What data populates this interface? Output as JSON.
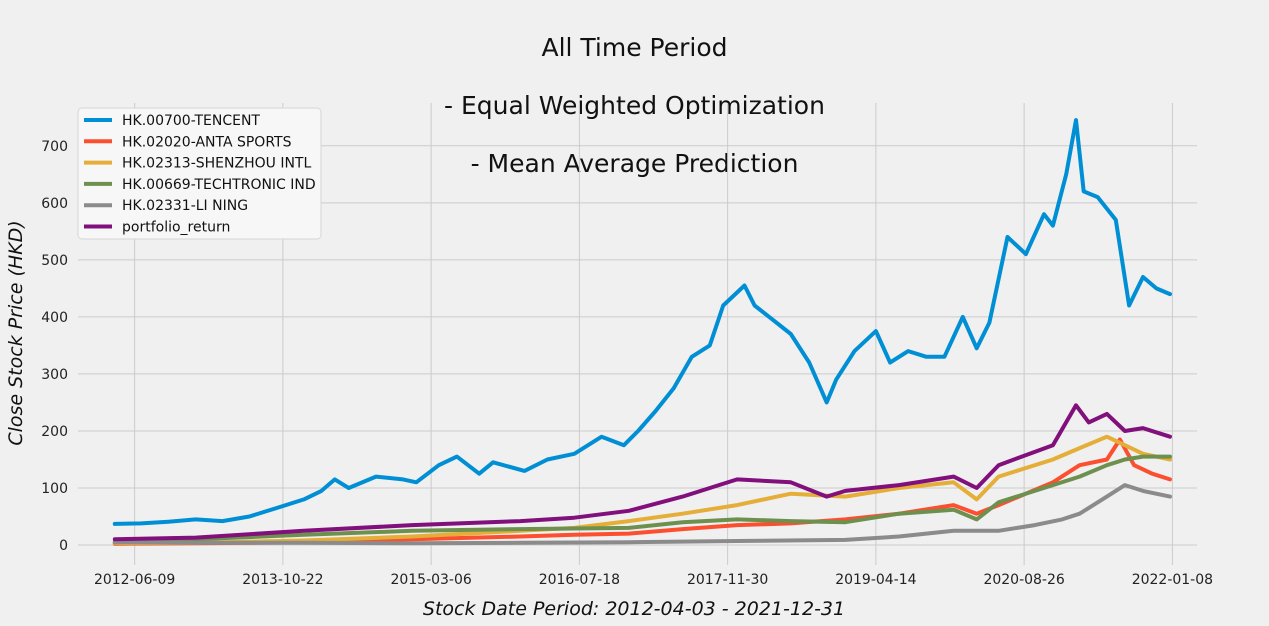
{
  "chart_data": {
    "type": "line",
    "title_lines": [
      "All Time Period",
      "- Equal Weighted Optimization",
      "- Mean Average Prediction"
    ],
    "xlabel": "Stock Date Period: 2012-04-03 - 2021-12-31",
    "ylabel": "Close Stock Price (HKD)",
    "xlim": [
      "2011-12-01",
      "2022-04-01"
    ],
    "ylim": [
      -35,
      775
    ],
    "x_ticks": [
      "2012-06-09",
      "2013-10-22",
      "2015-03-06",
      "2016-07-18",
      "2017-11-30",
      "2019-04-14",
      "2020-08-26",
      "2022-01-08"
    ],
    "y_ticks": [
      0,
      100,
      200,
      300,
      400,
      500,
      600,
      700
    ],
    "grid": true,
    "legend_position": "top-left",
    "series": [
      {
        "name": "HK.00700-TENCENT",
        "color": "#008fd5",
        "points": [
          [
            "2012-04-03",
            37
          ],
          [
            "2012-07-01",
            38
          ],
          [
            "2012-10-01",
            41
          ],
          [
            "2013-01-01",
            45
          ],
          [
            "2013-04-01",
            42
          ],
          [
            "2013-07-01",
            50
          ],
          [
            "2013-10-01",
            65
          ],
          [
            "2014-01-01",
            80
          ],
          [
            "2014-03-01",
            95
          ],
          [
            "2014-04-15",
            115
          ],
          [
            "2014-06-01",
            100
          ],
          [
            "2014-09-01",
            120
          ],
          [
            "2014-12-01",
            115
          ],
          [
            "2015-01-15",
            110
          ],
          [
            "2015-04-01",
            140
          ],
          [
            "2015-06-01",
            155
          ],
          [
            "2015-08-15",
            125
          ],
          [
            "2015-10-01",
            145
          ],
          [
            "2016-01-15",
            130
          ],
          [
            "2016-04-01",
            150
          ],
          [
            "2016-07-01",
            160
          ],
          [
            "2016-10-01",
            190
          ],
          [
            "2016-12-15",
            175
          ],
          [
            "2017-02-01",
            200
          ],
          [
            "2017-04-01",
            235
          ],
          [
            "2017-06-01",
            275
          ],
          [
            "2017-08-01",
            330
          ],
          [
            "2017-10-01",
            350
          ],
          [
            "2017-11-15",
            420
          ],
          [
            "2018-01-26",
            455
          ],
          [
            "2018-03-01",
            420
          ],
          [
            "2018-05-01",
            395
          ],
          [
            "2018-07-01",
            370
          ],
          [
            "2018-09-01",
            320
          ],
          [
            "2018-10-30",
            250
          ],
          [
            "2018-12-01",
            290
          ],
          [
            "2019-02-01",
            340
          ],
          [
            "2019-04-14",
            375
          ],
          [
            "2019-06-01",
            320
          ],
          [
            "2019-08-01",
            340
          ],
          [
            "2019-10-01",
            330
          ],
          [
            "2019-12-01",
            330
          ],
          [
            "2020-02-01",
            400
          ],
          [
            "2020-03-19",
            345
          ],
          [
            "2020-05-01",
            390
          ],
          [
            "2020-07-01",
            540
          ],
          [
            "2020-09-01",
            510
          ],
          [
            "2020-11-01",
            580
          ],
          [
            "2020-12-01",
            560
          ],
          [
            "2021-01-15",
            650
          ],
          [
            "2021-02-17",
            745
          ],
          [
            "2021-03-15",
            620
          ],
          [
            "2021-05-01",
            610
          ],
          [
            "2021-07-01",
            570
          ],
          [
            "2021-08-15",
            420
          ],
          [
            "2021-10-01",
            470
          ],
          [
            "2021-11-15",
            450
          ],
          [
            "2021-12-31",
            440
          ]
        ]
      },
      {
        "name": "HK.02020-ANTA SPORTS",
        "color": "#fc4f30",
        "points": [
          [
            "2012-04-03",
            2
          ],
          [
            "2013-01-01",
            3
          ],
          [
            "2014-01-01",
            5
          ],
          [
            "2015-01-01",
            10
          ],
          [
            "2016-01-01",
            15
          ],
          [
            "2016-07-01",
            18
          ],
          [
            "2017-01-01",
            20
          ],
          [
            "2017-07-01",
            28
          ],
          [
            "2018-01-01",
            35
          ],
          [
            "2018-07-01",
            38
          ],
          [
            "2019-01-01",
            45
          ],
          [
            "2019-07-01",
            55
          ],
          [
            "2020-01-01",
            70
          ],
          [
            "2020-03-19",
            55
          ],
          [
            "2020-06-01",
            70
          ],
          [
            "2020-12-01",
            110
          ],
          [
            "2021-03-01",
            140
          ],
          [
            "2021-06-01",
            150
          ],
          [
            "2021-07-15",
            185
          ],
          [
            "2021-09-01",
            140
          ],
          [
            "2021-11-01",
            125
          ],
          [
            "2021-12-31",
            115
          ]
        ]
      },
      {
        "name": "HK.02313-SHENZHOU INTL",
        "color": "#e5ae38",
        "points": [
          [
            "2012-04-03",
            3
          ],
          [
            "2013-01-01",
            4
          ],
          [
            "2014-01-01",
            8
          ],
          [
            "2015-01-01",
            15
          ],
          [
            "2016-01-01",
            25
          ],
          [
            "2016-07-01",
            30
          ],
          [
            "2017-01-01",
            42
          ],
          [
            "2017-07-01",
            55
          ],
          [
            "2018-01-01",
            70
          ],
          [
            "2018-07-01",
            90
          ],
          [
            "2019-01-01",
            85
          ],
          [
            "2019-07-01",
            100
          ],
          [
            "2020-01-01",
            110
          ],
          [
            "2020-03-19",
            80
          ],
          [
            "2020-06-01",
            120
          ],
          [
            "2020-12-01",
            150
          ],
          [
            "2021-03-01",
            170
          ],
          [
            "2021-06-01",
            190
          ],
          [
            "2021-08-01",
            175
          ],
          [
            "2021-10-01",
            160
          ],
          [
            "2021-12-31",
            150
          ]
        ]
      },
      {
        "name": "HK.00669-TECHTRONIC IND",
        "color": "#6d904f",
        "points": [
          [
            "2012-04-03",
            5
          ],
          [
            "2013-01-01",
            10
          ],
          [
            "2014-01-01",
            18
          ],
          [
            "2015-01-01",
            25
          ],
          [
            "2016-01-01",
            28
          ],
          [
            "2017-01-01",
            30
          ],
          [
            "2017-07-01",
            40
          ],
          [
            "2018-01-01",
            45
          ],
          [
            "2018-07-01",
            42
          ],
          [
            "2019-01-01",
            40
          ],
          [
            "2019-07-01",
            55
          ],
          [
            "2020-01-01",
            62
          ],
          [
            "2020-03-19",
            45
          ],
          [
            "2020-06-01",
            75
          ],
          [
            "2020-12-01",
            105
          ],
          [
            "2021-03-01",
            120
          ],
          [
            "2021-06-01",
            140
          ],
          [
            "2021-08-01",
            150
          ],
          [
            "2021-10-01",
            155
          ],
          [
            "2021-12-31",
            155
          ]
        ]
      },
      {
        "name": "HK.02331-LI NING",
        "color": "#8b8b8b",
        "points": [
          [
            "2012-04-03",
            5
          ],
          [
            "2013-01-01",
            4
          ],
          [
            "2014-01-01",
            4
          ],
          [
            "2015-01-01",
            3
          ],
          [
            "2016-01-01",
            4
          ],
          [
            "2017-01-01",
            5
          ],
          [
            "2018-01-01",
            7
          ],
          [
            "2019-01-01",
            9
          ],
          [
            "2019-07-01",
            15
          ],
          [
            "2020-01-01",
            25
          ],
          [
            "2020-06-01",
            25
          ],
          [
            "2020-10-01",
            35
          ],
          [
            "2021-01-01",
            45
          ],
          [
            "2021-03-01",
            55
          ],
          [
            "2021-06-01",
            85
          ],
          [
            "2021-08-01",
            105
          ],
          [
            "2021-10-01",
            95
          ],
          [
            "2021-12-31",
            85
          ]
        ]
      },
      {
        "name": "portfolio_return",
        "color": "#810f7c",
        "points": [
          [
            "2012-04-03",
            10
          ],
          [
            "2013-01-01",
            13
          ],
          [
            "2014-01-01",
            25
          ],
          [
            "2015-01-01",
            35
          ],
          [
            "2016-01-01",
            42
          ],
          [
            "2016-07-01",
            48
          ],
          [
            "2017-01-01",
            60
          ],
          [
            "2017-07-01",
            85
          ],
          [
            "2018-01-01",
            115
          ],
          [
            "2018-07-01",
            110
          ],
          [
            "2018-10-30",
            85
          ],
          [
            "2019-01-01",
            95
          ],
          [
            "2019-07-01",
            105
          ],
          [
            "2020-01-01",
            120
          ],
          [
            "2020-03-19",
            100
          ],
          [
            "2020-06-01",
            140
          ],
          [
            "2020-12-01",
            175
          ],
          [
            "2021-02-17",
            245
          ],
          [
            "2021-04-01",
            215
          ],
          [
            "2021-06-01",
            230
          ],
          [
            "2021-08-01",
            200
          ],
          [
            "2021-10-01",
            205
          ],
          [
            "2021-12-31",
            190
          ]
        ]
      }
    ]
  }
}
